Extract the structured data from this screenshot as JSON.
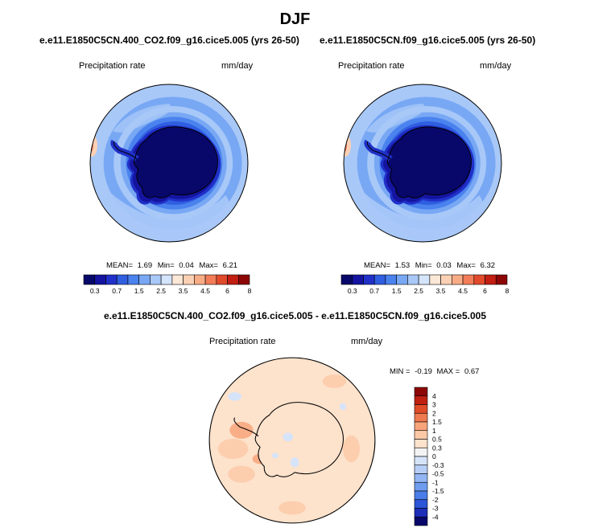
{
  "figure": {
    "title": "DJF",
    "diff_title": "e.e11.E1850C5CN.400_CO2.f09_g16.cice5.005 - e.e11.E1850C5CN.f09_g16.cice5.005"
  },
  "colors": {
    "precip_scale": [
      "#08086a",
      "#1414a0",
      "#2030c8",
      "#2f5ee0",
      "#4a82ee",
      "#78a8f4",
      "#a8c8f8",
      "#d4e4fb",
      "#fde7d6",
      "#fbd0b4",
      "#f8ac86",
      "#f27d58",
      "#e24a2c",
      "#c21e12",
      "#8c0606"
    ],
    "diff_scale": [
      "#08086a",
      "#1d2fb8",
      "#2c55d8",
      "#4a7de8",
      "#6e9cef",
      "#92b6f3",
      "#b6cef6",
      "#d6e4fa",
      "#f3f3f3",
      "#fde2cc",
      "#fbc9a6",
      "#f8a47a",
      "#f07a50",
      "#e04c28",
      "#c02010",
      "#8c0606"
    ]
  },
  "chart_data": [
    {
      "type": "heatmap",
      "projection": "south-polar-stereographic",
      "title": "e.e11.E1850C5CN.400_CO2.f09_g16.cice5.005 (yrs 26-50)",
      "variable_label": "Precipitation rate",
      "units_label": "mm/day",
      "stats": {
        "mean_label": "MEAN=",
        "mean": "1.69",
        "min_label": "Min=",
        "min": "0.04",
        "max_label": "Max=",
        "max": "6.21"
      },
      "colorbar": {
        "orientation": "horizontal",
        "levels": [
          "0.3",
          "0.7",
          "1.5",
          "2.5",
          "3.5",
          "4.5",
          "6",
          "8"
        ]
      }
    },
    {
      "type": "heatmap",
      "projection": "south-polar-stereographic",
      "title": "e.e11.E1850C5CN.f09_g16.cice5.005 (yrs 26-50)",
      "variable_label": "Precipitation rate",
      "units_label": "mm/day",
      "stats": {
        "mean_label": "MEAN=",
        "mean": "1.53",
        "min_label": "Min=",
        "min": "0.03",
        "max_label": "Max=",
        "max": "6.32"
      },
      "colorbar": {
        "orientation": "horizontal",
        "levels": [
          "0.3",
          "0.7",
          "1.5",
          "2.5",
          "3.5",
          "4.5",
          "6",
          "8"
        ]
      }
    },
    {
      "type": "heatmap",
      "projection": "south-polar-stereographic",
      "title": "e.e11.E1850C5CN.400_CO2.f09_g16.cice5.005 - e.e11.E1850C5CN.f09_g16.cice5.005",
      "variable_label": "Precipitation rate",
      "units_label": "mm/day",
      "stats": {
        "min_label": "MIN =",
        "min": "-0.19",
        "max_label": "MAX =",
        "max": "0.67"
      },
      "colorbar": {
        "orientation": "vertical",
        "levels": [
          "4",
          "3",
          "2",
          "1.5",
          "1",
          "0.5",
          "0.3",
          "0",
          "-0.3",
          "-0.5",
          "-1",
          "-1.5",
          "-2",
          "-3",
          "-4"
        ]
      }
    }
  ]
}
